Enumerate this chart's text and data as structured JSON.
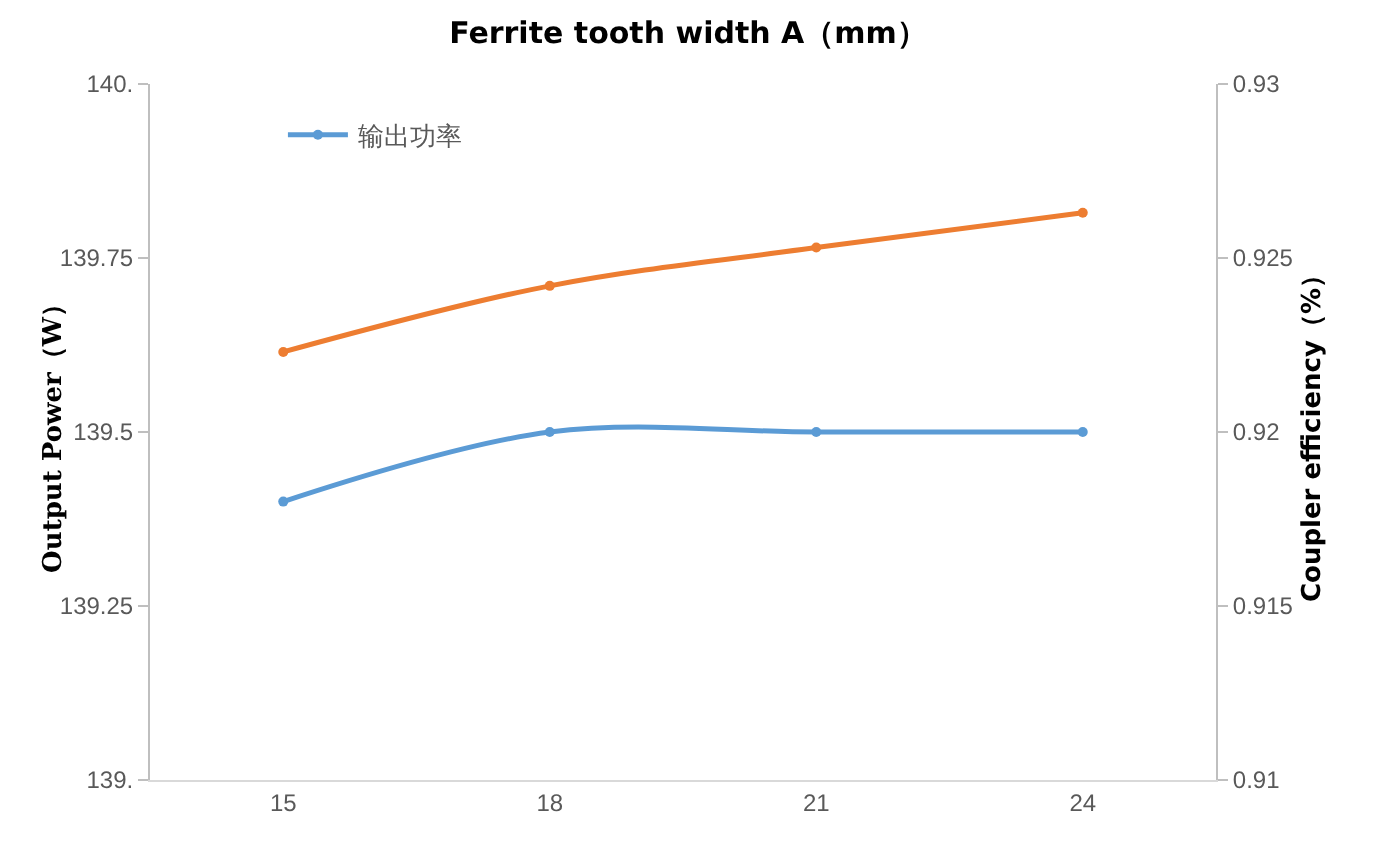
{
  "chart_data": {
    "type": "line",
    "title": "Ferrite tooth width A（mm）",
    "ylabel": "Output Power（W）",
    "y2label": "Coupler efficiency（%）",
    "categories": [
      "15",
      "18",
      "21",
      "24"
    ],
    "series": [
      {
        "name": "输出功率",
        "color": "#5b9bd5",
        "values": [
          139.4,
          139.5,
          139.5,
          139.5
        ]
      },
      {
        "color": "#ed7d31",
        "axis": "y2",
        "values": [
          0.9223,
          0.9242,
          0.9253,
          0.9263
        ]
      }
    ],
    "ylim": [
      139,
      140
    ],
    "yticks": [
      {
        "value": 139,
        "label": "139."
      },
      139.25,
      139.5,
      139.75,
      {
        "value": 140,
        "label": "140."
      }
    ],
    "y2lim": [
      0.91,
      0.93
    ],
    "y2ticks": [
      0.91,
      0.915,
      0.92,
      0.925,
      0.93
    ],
    "grid": false,
    "legend": "top left",
    "marker": "circle",
    "line_style": "solid"
  }
}
